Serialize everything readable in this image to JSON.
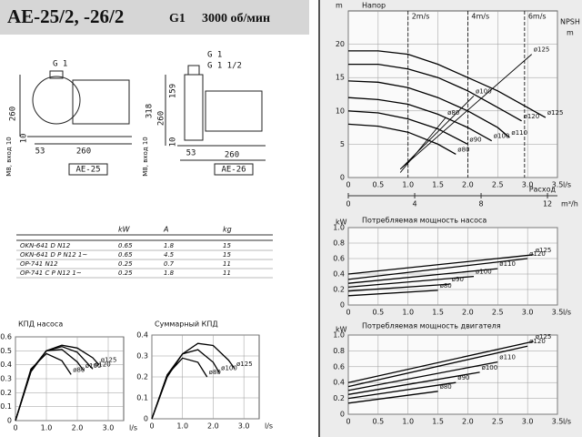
{
  "header": {
    "title": "AE-25/2, -26/2",
    "connection": "G1",
    "speed": "3000 об/мин"
  },
  "drawings": {
    "ae25": {
      "label": "AE-25",
      "inlet": "G 1",
      "height": "260",
      "base": "10",
      "offset": "53",
      "length": "260",
      "mount": "M8, вход 10"
    },
    "ae26": {
      "label": "AE-26",
      "inlet": "G 1",
      "outlet": "G 1 1/2",
      "top": "159",
      "height": "318",
      "mid": "260",
      "base": "10",
      "offset": "53",
      "length": "260",
      "mount": "M8, вход 10"
    }
  },
  "table": {
    "headers": [
      "kW",
      "A",
      "kg"
    ],
    "rows": [
      [
        "OKN-641 D N12",
        "0.65",
        "1.8",
        "15"
      ],
      [
        "OKN-641 D P N12 1~",
        "0.65",
        "4.5",
        "15"
      ],
      [
        "OP-741 N12",
        "0.25",
        "0.7",
        "11"
      ],
      [
        "OP-741 C P N12 1~",
        "0.25",
        "1.8",
        "11"
      ]
    ]
  },
  "chart_data": [
    {
      "type": "line",
      "title": "Напор",
      "y_label": "m",
      "x_label": "l/s",
      "color": "#000000",
      "grid": true,
      "xlim": [
        0,
        3.5
      ],
      "ylim": [
        0,
        25
      ],
      "xticks": [
        0,
        0.5,
        {
          "value": 1,
          "label": "1.0"
        },
        1.5,
        {
          "value": 2,
          "label": "2.0"
        },
        2.5,
        {
          "value": 3,
          "label": "3.0"
        },
        3.5
      ],
      "yticks": [
        0,
        5,
        10,
        15,
        20
      ],
      "x2_label": "Расход",
      "x2_unit": "m³/h",
      "x2lim": [
        0,
        12.6
      ],
      "x2ticks": [
        0,
        4,
        8,
        12
      ],
      "y2_label": "NPSH",
      "y2_unit": "m",
      "y2lim": [
        0,
        10
      ],
      "velocity_markers": [
        {
          "x": 1.0,
          "label": "2m/s"
        },
        {
          "x": 2.0,
          "label": "4m/s"
        },
        {
          "x": 2.95,
          "label": "6m/s"
        }
      ],
      "series": [
        {
          "name": "ø125",
          "x": [
            0,
            0.5,
            1.0,
            1.5,
            2.0,
            2.5,
            3.0,
            3.3
          ],
          "values": [
            19,
            19,
            18.5,
            17,
            15,
            13,
            10.5,
            9
          ]
        },
        {
          "name": "ø120",
          "x": [
            0,
            0.5,
            1.0,
            1.5,
            2.0,
            2.5,
            2.9
          ],
          "values": [
            17,
            17,
            16.3,
            15,
            13,
            10.5,
            8.5
          ]
        },
        {
          "name": "ø110",
          "x": [
            0,
            0.5,
            1.0,
            1.5,
            2.0,
            2.5,
            2.7
          ],
          "values": [
            14.5,
            14.3,
            13.5,
            12,
            10,
            7.5,
            6
          ]
        },
        {
          "name": "ø100",
          "x": [
            0,
            0.5,
            1.0,
            1.5,
            2.0,
            2.4
          ],
          "values": [
            12,
            11.7,
            11,
            9.5,
            7.5,
            5.5
          ]
        },
        {
          "name": "ø90",
          "x": [
            0,
            0.5,
            1.0,
            1.5,
            2.0
          ],
          "values": [
            10,
            9.7,
            8.8,
            7.3,
            5
          ]
        },
        {
          "name": "ø80",
          "x": [
            0,
            0.5,
            1.0,
            1.5,
            1.8
          ],
          "values": [
            8,
            7.7,
            6.8,
            5,
            3.5
          ]
        },
        {
          "name": "ø125",
          "axis": "y2",
          "x": [
            0.87,
            3.07
          ],
          "values": [
            0.5,
            7.4
          ]
        },
        {
          "name": "ø100",
          "axis": "y2",
          "x": [
            0.87,
            2.1
          ],
          "values": [
            0.5,
            4.9
          ]
        },
        {
          "name": "ø80",
          "axis": "y2",
          "x": [
            0.87,
            1.63
          ],
          "values": [
            0.3,
            3.6
          ]
        }
      ]
    },
    {
      "type": "line",
      "title": "Потребляемая мощность насоса",
      "y_label": "kW",
      "x_label": "l/s",
      "color": "#000000",
      "grid": true,
      "xlim": [
        0,
        3.5
      ],
      "ylim": [
        0,
        1
      ],
      "xticks": [
        0,
        0.5,
        {
          "value": 1,
          "label": "1.0"
        },
        1.5,
        {
          "value": 2,
          "label": "2.0"
        },
        2.5,
        {
          "value": 3,
          "label": "3.0"
        },
        3.5
      ],
      "yticks": [
        0,
        0.2,
        0.4,
        0.6,
        0.8,
        {
          "value": 1,
          "label": "1.0"
        }
      ],
      "series": [
        {
          "name": "ø125",
          "x": [
            0,
            3.1
          ],
          "values": [
            0.4,
            0.65
          ]
        },
        {
          "name": "ø120",
          "x": [
            0,
            3.0
          ],
          "values": [
            0.33,
            0.6
          ]
        },
        {
          "name": "ø110",
          "x": [
            0,
            2.5
          ],
          "values": [
            0.28,
            0.47
          ]
        },
        {
          "name": "ø100",
          "x": [
            0,
            2.1
          ],
          "values": [
            0.23,
            0.37
          ]
        },
        {
          "name": "ø90",
          "x": [
            0,
            1.7
          ],
          "values": [
            0.18,
            0.27
          ]
        },
        {
          "name": "ø80",
          "x": [
            0,
            1.5
          ],
          "values": [
            0.12,
            0.19
          ]
        }
      ]
    },
    {
      "type": "line",
      "title": "Потребляемая мощность двигателя",
      "y_label": "kW",
      "x_label": "l/s",
      "color": "#000000",
      "grid": true,
      "xlim": [
        0,
        3.5
      ],
      "ylim": [
        0,
        1
      ],
      "xticks": [
        0,
        0.5,
        {
          "value": 1,
          "label": "1.0"
        },
        1.5,
        {
          "value": 2,
          "label": "2.0"
        },
        2.5,
        {
          "value": 3,
          "label": "3.0"
        },
        3.5
      ],
      "yticks": [
        0,
        0.2,
        0.4,
        0.6,
        0.8,
        {
          "value": 1,
          "label": "1.0"
        }
      ],
      "series": [
        {
          "name": "ø125",
          "x": [
            0,
            3.1
          ],
          "values": [
            0.4,
            0.92
          ]
        },
        {
          "name": "ø120",
          "x": [
            0,
            3.0
          ],
          "values": [
            0.35,
            0.86
          ]
        },
        {
          "name": "ø110",
          "x": [
            0,
            2.5
          ],
          "values": [
            0.3,
            0.66
          ]
        },
        {
          "name": "ø100",
          "x": [
            0,
            2.2
          ],
          "values": [
            0.25,
            0.53
          ]
        },
        {
          "name": "ø90",
          "x": [
            0,
            1.8
          ],
          "values": [
            0.2,
            0.4
          ]
        },
        {
          "name": "ø80",
          "x": [
            0,
            1.5
          ],
          "values": [
            0.14,
            0.29
          ]
        }
      ]
    },
    {
      "type": "line",
      "title": "КПД насоса",
      "x_label": "l/s",
      "color": "#000000",
      "grid": true,
      "xlim": [
        0,
        3.5
      ],
      "ylim": [
        0,
        0.6
      ],
      "xticks": [
        0,
        {
          "value": 1,
          "label": "1.0"
        },
        {
          "value": 2,
          "label": "2.0"
        },
        {
          "value": 3,
          "label": "3.0"
        }
      ],
      "yticks": [
        0,
        0.1,
        0.2,
        0.3,
        0.4,
        0.5,
        0.6
      ],
      "series": [
        {
          "name": "ø125",
          "x": [
            0,
            0.5,
            1,
            1.5,
            2,
            2.5,
            2.7
          ],
          "values": [
            0,
            0.35,
            0.5,
            0.54,
            0.52,
            0.45,
            0.4
          ]
        },
        {
          "name": "ø120",
          "x": [
            0,
            0.5,
            1,
            1.5,
            2,
            2.5
          ],
          "values": [
            0,
            0.35,
            0.5,
            0.53,
            0.49,
            0.37
          ]
        },
        {
          "name": "ø100",
          "x": [
            0,
            0.5,
            1,
            1.5,
            2,
            2.2
          ],
          "values": [
            0,
            0.36,
            0.5,
            0.51,
            0.42,
            0.36
          ]
        },
        {
          "name": "ø80",
          "x": [
            0,
            0.5,
            1,
            1.5,
            1.8
          ],
          "values": [
            0,
            0.37,
            0.48,
            0.43,
            0.33
          ]
        }
      ]
    },
    {
      "type": "line",
      "title": "Суммарный КПД",
      "x_label": "l/s",
      "color": "#000000",
      "grid": true,
      "xlim": [
        0,
        3.5
      ],
      "ylim": [
        0,
        0.4
      ],
      "xticks": [
        0,
        {
          "value": 1,
          "label": "1.0"
        },
        {
          "value": 2,
          "label": "2.0"
        },
        {
          "value": 3,
          "label": "3.0"
        }
      ],
      "yticks": [
        0,
        0.1,
        0.2,
        0.3,
        0.4
      ],
      "series": [
        {
          "name": "ø125",
          "x": [
            0,
            0.5,
            1,
            1.5,
            2,
            2.5,
            2.7
          ],
          "values": [
            0,
            0.2,
            0.31,
            0.36,
            0.35,
            0.28,
            0.24
          ]
        },
        {
          "name": "ø100",
          "x": [
            0,
            0.5,
            1,
            1.5,
            2,
            2.2
          ],
          "values": [
            0,
            0.21,
            0.31,
            0.33,
            0.27,
            0.22
          ]
        },
        {
          "name": "ø80",
          "x": [
            0,
            0.5,
            1,
            1.5,
            1.8
          ],
          "values": [
            0,
            0.21,
            0.29,
            0.27,
            0.2
          ]
        }
      ]
    }
  ]
}
